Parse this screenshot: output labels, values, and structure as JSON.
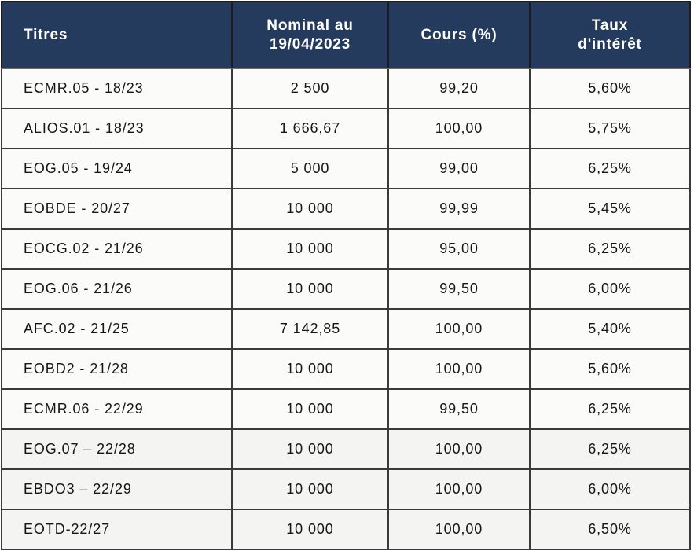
{
  "colors": {
    "header_bg": "#243b5e",
    "header_text": "#ffffff",
    "row_bg": "#fbfbfa",
    "row_bg_bottom": "#f4f4f2",
    "grid_border": "#3a3a3a",
    "body_text": "#161616"
  },
  "chart_data": {
    "type": "table",
    "title": "",
    "columns": [
      "Titres",
      "Nominal au 19/04/2023",
      "Cours (%)",
      "Taux d'intérêt"
    ],
    "rows": [
      [
        "ECMR.05 - 18/23",
        "2 500",
        "99,20",
        "5,60%"
      ],
      [
        "ALIOS.01 - 18/23",
        "1 666,67",
        "100,00",
        "5,75%"
      ],
      [
        "EOG.05 - 19/24",
        "5 000",
        "99,00",
        "6,25%"
      ],
      [
        "EOBDE - 20/27",
        "10 000",
        "99,99",
        "5,45%"
      ],
      [
        "EOCG.02 - 21/26",
        "10 000",
        "95,00",
        "6,25%"
      ],
      [
        "EOG.06 - 21/26",
        "10 000",
        "99,50",
        "6,00%"
      ],
      [
        "AFC.02 - 21/25",
        "7 142,85",
        "100,00",
        "5,40%"
      ],
      [
        "EOBD2 - 21/28",
        "10 000",
        "100,00",
        "5,60%"
      ],
      [
        "ECMR.06 - 22/29",
        "10 000",
        "99,50",
        "6,25%"
      ],
      [
        "EOG.07 – 22/28",
        "10 000",
        "100,00",
        "6,25%"
      ],
      [
        "EBDO3 – 22/29",
        "10 000",
        "100,00",
        "6,00%"
      ],
      [
        "EOTD-22/27",
        "10 000",
        "100,00",
        "6,50%"
      ]
    ],
    "layout": {
      "grid": true,
      "header_style": "dark-navy-band",
      "first_column_align": "left",
      "other_columns_align": "center"
    }
  }
}
